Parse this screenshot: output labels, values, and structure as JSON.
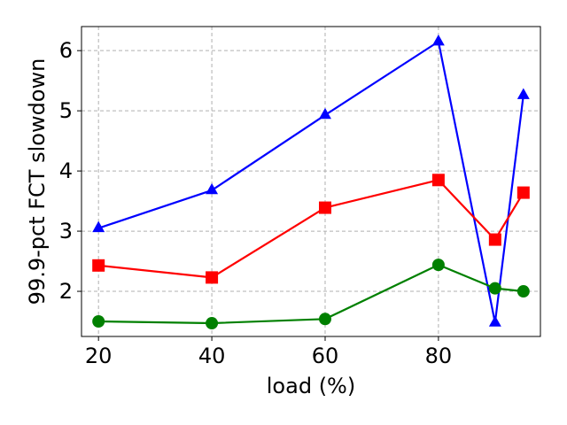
{
  "chart_data": {
    "type": "line",
    "xlabel": "load (%)",
    "ylabel": "99.9-pct FCT slowdown",
    "x": [
      20,
      40,
      60,
      80,
      90,
      95
    ],
    "xlim": [
      17,
      98
    ],
    "ylim": [
      1.25,
      6.4
    ],
    "xticks": [
      20,
      40,
      60,
      80
    ],
    "yticks": [
      2,
      3,
      4,
      5,
      6
    ],
    "grid": true,
    "series": [
      {
        "color": "#0000ff",
        "marker": "triangle",
        "values": [
          3.05,
          3.68,
          4.93,
          6.15,
          1.48,
          5.26
        ]
      },
      {
        "color": "#ff0000",
        "marker": "square",
        "values": [
          2.43,
          2.23,
          3.39,
          3.85,
          2.86,
          3.64
        ]
      },
      {
        "color": "#008000",
        "marker": "circle",
        "values": [
          1.5,
          1.47,
          1.54,
          2.44,
          2.05,
          2.0
        ]
      }
    ]
  }
}
